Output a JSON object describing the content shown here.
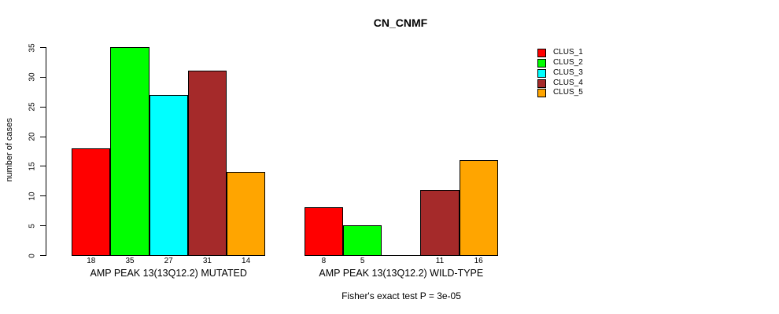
{
  "chart_data": {
    "type": "bar",
    "title": "CN_CNMF",
    "ylabel": "number of cases",
    "ylim": [
      0,
      35
    ],
    "yticks": [
      0,
      5,
      10,
      15,
      20,
      25,
      30,
      35
    ],
    "grid": false,
    "legend_position": "right",
    "series_names": [
      "CLUS_1",
      "CLUS_2",
      "CLUS_3",
      "CLUS_4",
      "CLUS_5"
    ],
    "colors": [
      "#FF0000",
      "#00FF00",
      "#00FFFF",
      "#A52A2A",
      "#FFA500"
    ],
    "groups": [
      {
        "label": "AMP PEAK 13(13Q12.2) MUTATED",
        "values": [
          18,
          35,
          27,
          31,
          14
        ]
      },
      {
        "label": "AMP PEAK 13(13Q12.2) WILD-TYPE",
        "values": [
          8,
          5,
          0,
          11,
          16
        ]
      }
    ],
    "caption": "Fisher's exact test P = 3e-05"
  }
}
